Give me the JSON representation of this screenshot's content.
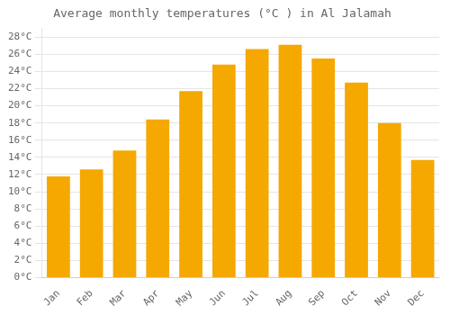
{
  "chart_data": {
    "type": "bar",
    "title": "Average monthly temperatures (°C ) in Al Jalamah",
    "categories": [
      "Jan",
      "Feb",
      "Mar",
      "Apr",
      "May",
      "Jun",
      "Jul",
      "Aug",
      "Sep",
      "Oct",
      "Nov",
      "Dec"
    ],
    "values": [
      11.8,
      12.6,
      14.8,
      18.4,
      21.7,
      24.8,
      26.6,
      27.1,
      25.5,
      22.7,
      18.0,
      13.7
    ],
    "color": "#F5A800",
    "ylim": [
      0,
      29
    ],
    "yticks": [
      {
        "value": 0,
        "label": "0°C"
      },
      {
        "value": 2,
        "label": "2°C"
      },
      {
        "value": 4,
        "label": "4°C"
      },
      {
        "value": 6,
        "label": "6°C"
      },
      {
        "value": 8,
        "label": "8°C"
      },
      {
        "value": 10,
        "label": "10°C"
      },
      {
        "value": 12,
        "label": "12°C"
      },
      {
        "value": 14,
        "label": "14°C"
      },
      {
        "value": 16,
        "label": "16°C"
      },
      {
        "value": 18,
        "label": "18°C"
      },
      {
        "value": 20,
        "label": "20°C"
      },
      {
        "value": 22,
        "label": "22°C"
      },
      {
        "value": 24,
        "label": "24°C"
      },
      {
        "value": 26,
        "label": "26°C"
      },
      {
        "value": 28,
        "label": "28°C"
      }
    ],
    "grid": "y"
  }
}
